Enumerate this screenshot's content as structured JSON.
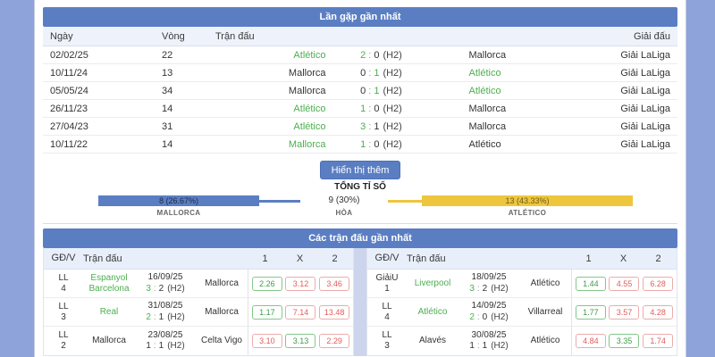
{
  "glue": {
    "colon": ":"
  },
  "colors": {
    "accent": "#5b7ec3",
    "win_green": "#4caf50",
    "odds_red": "#e25c5c",
    "bar_yellow": "#eec63d",
    "page_bg": "#8da3d9"
  },
  "h2h": {
    "title": "Lần gặp gần nhất",
    "columns": {
      "date": "Ngày",
      "round": "Vòng",
      "match": "Trận đấu",
      "league": "Giải đấu"
    },
    "rows": [
      {
        "date": "02/02/25",
        "round": "22",
        "home": "Atlético",
        "hs": "2",
        "as": "0",
        "suffix": "(H2)",
        "away": "Mallorca",
        "home_win": true,
        "away_win": false,
        "league": "Giải LaLiga"
      },
      {
        "date": "10/11/24",
        "round": "13",
        "home": "Mallorca",
        "hs": "0",
        "as": "1",
        "suffix": "(H2)",
        "away": "Atlético",
        "home_win": false,
        "away_win": true,
        "league": "Giải LaLiga"
      },
      {
        "date": "05/05/24",
        "round": "34",
        "home": "Mallorca",
        "hs": "0",
        "as": "1",
        "suffix": "(H2)",
        "away": "Atlético",
        "home_win": false,
        "away_win": true,
        "league": "Giải LaLiga"
      },
      {
        "date": "26/11/23",
        "round": "14",
        "home": "Atlético",
        "hs": "1",
        "as": "0",
        "suffix": "(H2)",
        "away": "Mallorca",
        "home_win": true,
        "away_win": false,
        "league": "Giải LaLiga"
      },
      {
        "date": "27/04/23",
        "round": "31",
        "home": "Atlético",
        "hs": "3",
        "as": "1",
        "suffix": "(H2)",
        "away": "Mallorca",
        "home_win": true,
        "away_win": false,
        "league": "Giải LaLiga"
      },
      {
        "date": "10/11/22",
        "round": "14",
        "home": "Mallorca",
        "hs": "1",
        "as": "0",
        "suffix": "(H2)",
        "away": "Atlético",
        "home_win": true,
        "away_win": false,
        "league": "Giải LaLiga"
      }
    ],
    "show_more": "Hiển thị thêm",
    "total_label": "TỔNG TỈ SỐ",
    "summary": {
      "left": {
        "value": "8 (26.67%)",
        "label": "MALLORCA"
      },
      "draw": {
        "value": "9 (30%)",
        "label": "HÒA"
      },
      "right": {
        "value": "13 (43.33%)",
        "label": "ATLÉTICO"
      }
    }
  },
  "recent": {
    "title": "Các trận đấu gần nhất",
    "columns": {
      "gdv": "GĐ/V",
      "match": "Trận đấu",
      "one": "1",
      "x": "X",
      "two": "2"
    },
    "left": [
      {
        "comp": "LL",
        "round": "4",
        "home": "Espanyol Barcelona",
        "home_win": true,
        "date": "16/09/25",
        "hs": "3",
        "as": "2",
        "suffix": "(H2)",
        "away": "Mallorca",
        "away_win": false,
        "odds": [
          {
            "v": "2.26",
            "c": "green"
          },
          {
            "v": "3.12",
            "c": "red"
          },
          {
            "v": "3.46",
            "c": "red"
          }
        ]
      },
      {
        "comp": "LL",
        "round": "3",
        "home": "Real",
        "home_win": true,
        "date": "31/08/25",
        "hs": "2",
        "as": "1",
        "suffix": "(H2)",
        "away": "Mallorca",
        "away_win": false,
        "odds": [
          {
            "v": "1.17",
            "c": "green"
          },
          {
            "v": "7.14",
            "c": "red"
          },
          {
            "v": "13.48",
            "c": "red"
          }
        ]
      },
      {
        "comp": "LL",
        "round": "2",
        "home": "Mallorca",
        "home_win": false,
        "date": "23/08/25",
        "hs": "1",
        "as": "1",
        "suffix": "(H2)",
        "away": "Celta Vigo",
        "away_win": false,
        "odds": [
          {
            "v": "3.10",
            "c": "red"
          },
          {
            "v": "3.13",
            "c": "green"
          },
          {
            "v": "2.29",
            "c": "red"
          }
        ]
      }
    ],
    "right": [
      {
        "comp": "GiảiU",
        "round": "1",
        "home": "Liverpool",
        "home_win": true,
        "date": "18/09/25",
        "hs": "3",
        "as": "2",
        "suffix": "(H2)",
        "away": "Atlético",
        "away_win": false,
        "odds": [
          {
            "v": "1.44",
            "c": "green"
          },
          {
            "v": "4.55",
            "c": "red"
          },
          {
            "v": "6.28",
            "c": "red"
          }
        ]
      },
      {
        "comp": "LL",
        "round": "4",
        "home": "Atlético",
        "home_win": true,
        "date": "14/09/25",
        "hs": "2",
        "as": "0",
        "suffix": "(H2)",
        "away": "Villarreal",
        "away_win": false,
        "odds": [
          {
            "v": "1.77",
            "c": "green"
          },
          {
            "v": "3.57",
            "c": "red"
          },
          {
            "v": "4.28",
            "c": "red"
          }
        ]
      },
      {
        "comp": "LL",
        "round": "3",
        "home": "Alavés",
        "home_win": false,
        "date": "30/08/25",
        "hs": "1",
        "as": "1",
        "suffix": "(H2)",
        "away": "Atlético",
        "away_win": false,
        "odds": [
          {
            "v": "4.84",
            "c": "red"
          },
          {
            "v": "3.35",
            "c": "green"
          },
          {
            "v": "1.74",
            "c": "red"
          }
        ]
      }
    ]
  }
}
